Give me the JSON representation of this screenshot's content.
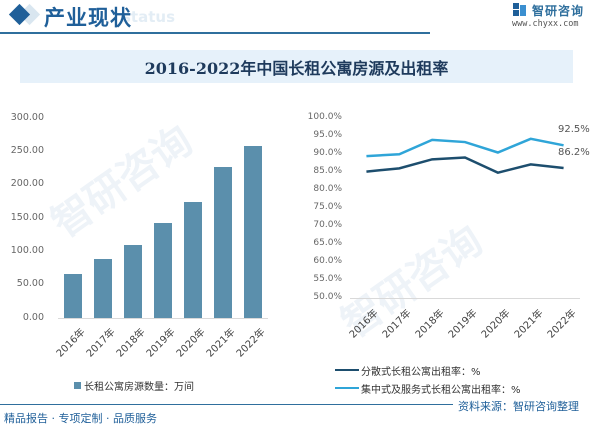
{
  "header": {
    "title": "产业现状",
    "ghost_text": "status",
    "brand_name": "智研咨询",
    "brand_url": "www.chyxx.com"
  },
  "chart_title": "2016-2022年中国长租公寓房源及出租率",
  "footer": {
    "left": "精品报告 · 专项定制 · 品质服务",
    "right": "资料来源：智研咨询整理"
  },
  "colors": {
    "brand": "#1f5f99",
    "bar": "#5b8fac",
    "line_dispersed": "#1d4e6e",
    "line_centralized": "#2fa5d8",
    "title_band": "#e6f1fa"
  },
  "chart_data": [
    {
      "type": "bar",
      "title": "长租公寓房源数量",
      "categories": [
        "2016年",
        "2017年",
        "2018年",
        "2019年",
        "2020年",
        "2021年",
        "2022年"
      ],
      "series": [
        {
          "name": "长租公寓房源数量：万间",
          "values": [
            65.6,
            87.6,
            108.6,
            142.5,
            174.0,
            226.5,
            258.0
          ]
        }
      ],
      "yticks": [
        "0.00",
        "50.00",
        "100.00",
        "150.00",
        "200.00",
        "250.00",
        "300.00"
      ],
      "ylim": [
        0,
        300
      ],
      "xlabel": "",
      "ylabel": "",
      "legend_position": "bottom",
      "grid": false
    },
    {
      "type": "line",
      "title": "长租公寓出租率",
      "categories": [
        "2016年",
        "2017年",
        "2018年",
        "2019年",
        "2020年",
        "2021年",
        "2022年"
      ],
      "series": [
        {
          "name": "分散式长租公寓出租率：%",
          "values": [
            85.2,
            86.1,
            88.6,
            89.1,
            84.9,
            87.2,
            86.2
          ]
        },
        {
          "name": "集中式及服务式长租公寓出租率：%",
          "values": [
            89.5,
            90.0,
            94.0,
            93.4,
            90.5,
            94.3,
            92.5
          ]
        }
      ],
      "annotations": [
        "92.5%",
        "86.2%"
      ],
      "yticks": [
        "50.0%",
        "55.0%",
        "60.0%",
        "65.0%",
        "70.0%",
        "75.0%",
        "80.0%",
        "85.0%",
        "90.0%",
        "95.0%",
        "100.0%"
      ],
      "ylim": [
        50,
        100
      ],
      "xlabel": "",
      "ylabel": "",
      "legend_position": "bottom",
      "grid": false
    }
  ]
}
